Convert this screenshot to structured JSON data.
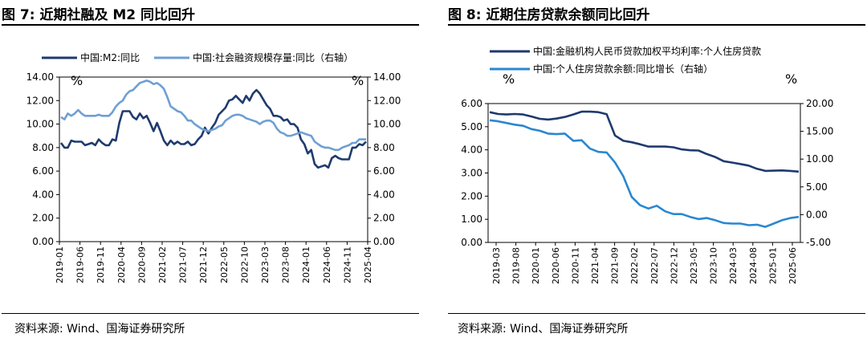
{
  "left": {
    "title": "图 7:  近期社融及 M2 同比回升",
    "source": "资料来源:  Wind、国海证券研究所",
    "chart_data": {
      "type": "line",
      "xlabels": [
        "2019-01",
        "2019-06",
        "2019-11",
        "2020-04",
        "2020-09",
        "2021-02",
        "2021-07",
        "2021-12",
        "2022-05",
        "2022-10",
        "2023-03",
        "2023-08",
        "2024-01",
        "2024-06",
        "2024-11",
        "2025-04"
      ],
      "y_left": {
        "unit": "%",
        "min": 0,
        "max": 14,
        "ticks": [
          "0.00",
          "2.00",
          "4.00",
          "6.00",
          "8.00",
          "10.00",
          "12.00",
          "14.00"
        ]
      },
      "y_right": {
        "unit": "%",
        "min": 0,
        "max": 14,
        "ticks": [
          "0.00",
          "2.00",
          "4.00",
          "6.00",
          "8.00",
          "10.00",
          "12.00",
          "14.00"
        ]
      },
      "series": [
        {
          "name": "中国:M2:同比",
          "color": "#1f3a6e",
          "axis": "left",
          "values": [
            8.4,
            8.0,
            8.0,
            8.6,
            8.5,
            8.5,
            8.5,
            8.2,
            8.3,
            8.4,
            8.2,
            8.7,
            8.4,
            8.2,
            8.2,
            8.7,
            8.6,
            10.1,
            11.1,
            11.1,
            11.1,
            10.6,
            10.4,
            10.9,
            10.5,
            10.7,
            10.1,
            9.4,
            10.1,
            9.4,
            8.6,
            8.2,
            8.6,
            8.3,
            8.5,
            8.3,
            8.3,
            8.5,
            8.2,
            8.3,
            8.7,
            9.0,
            9.7,
            9.2,
            9.7,
            10.1,
            10.8,
            11.1,
            11.4,
            12.0,
            12.1,
            12.4,
            12.1,
            11.8,
            12.4,
            12.0,
            12.6,
            12.9,
            12.6,
            12.1,
            11.6,
            11.3,
            10.7,
            10.7,
            10.6,
            10.3,
            10.4,
            10.0,
            10.0,
            9.7,
            8.7,
            8.3,
            7.5,
            7.8,
            6.6,
            6.3,
            6.4,
            6.5,
            6.3,
            7.1,
            7.3,
            7.1,
            7.0,
            7.0,
            7.0,
            8.0,
            8.0,
            8.3,
            8.2,
            8.5
          ]
        },
        {
          "name": "中国:社会融资规模存量:同比（右轴）",
          "color": "#6e9fd4",
          "axis": "right",
          "values": [
            10.6,
            10.4,
            10.9,
            10.7,
            10.9,
            11.2,
            10.9,
            10.7,
            10.7,
            10.7,
            10.7,
            10.8,
            10.7,
            10.7,
            10.7,
            11.0,
            11.5,
            11.8,
            12.0,
            12.5,
            12.8,
            12.9,
            13.2,
            13.5,
            13.6,
            13.7,
            13.6,
            13.4,
            13.5,
            13.3,
            13.0,
            12.3,
            11.5,
            11.3,
            11.1,
            11.0,
            10.7,
            10.3,
            10.3,
            10.0,
            9.8,
            9.6,
            9.5,
            9.4,
            9.5,
            9.6,
            9.8,
            9.9,
            10.3,
            10.5,
            10.7,
            10.8,
            10.8,
            10.7,
            10.5,
            10.4,
            10.3,
            10.2,
            10.0,
            10.2,
            10.3,
            10.3,
            10.1,
            9.6,
            9.3,
            9.2,
            9.0,
            9.0,
            9.1,
            9.2,
            9.3,
            9.2,
            9.1,
            9.0,
            8.5,
            8.3,
            8.1,
            8.0,
            8.0,
            7.9,
            7.8,
            7.8,
            8.0,
            8.1,
            8.2,
            8.4,
            8.4,
            8.7,
            8.7,
            8.7
          ]
        }
      ]
    }
  },
  "right": {
    "title": "图 8:  近期住房贷款余额同比回升",
    "source": "资料来源:  Wind、国海证券研究所",
    "chart_data": {
      "type": "line",
      "xlabels": [
        "2019-03",
        "2019-08",
        "2020-01",
        "2020-06",
        "2020-11",
        "2021-04",
        "2021-09",
        "2022-02",
        "2022-07",
        "2022-12",
        "2023-05",
        "2023-10",
        "2024-03",
        "2024-08",
        "2025-01",
        "2025-06"
      ],
      "y_left": {
        "unit": "%",
        "min": 0,
        "max": 6,
        "ticks": [
          "0.00",
          "1.00",
          "2.00",
          "3.00",
          "4.00",
          "5.00",
          "6.00"
        ]
      },
      "y_right": {
        "unit": "%",
        "min": -5,
        "max": 20,
        "ticks": [
          "-5.00",
          "0.00",
          "5.00",
          "10.00",
          "15.00",
          "20.00"
        ]
      },
      "series": [
        {
          "name": "中国:金融机构人民币贷款加权平均利率:个人住房贷款",
          "color": "#1f3a6e",
          "axis": "left",
          "values": [
            5.63,
            5.55,
            5.53,
            5.55,
            5.53,
            5.44,
            5.34,
            5.31,
            5.35,
            5.42,
            5.53,
            5.65,
            5.65,
            5.63,
            5.54,
            4.62,
            4.39,
            4.33,
            4.24,
            4.14,
            4.14,
            4.14,
            4.11,
            4.02,
            3.98,
            3.97,
            3.82,
            3.69,
            3.51,
            3.45,
            3.39,
            3.32,
            3.18,
            3.09,
            3.1,
            3.11,
            3.09,
            3.06
          ]
        },
        {
          "name": "中国:个人住房贷款余额:同比增长（右轴）",
          "color": "#2a87d0",
          "axis": "right",
          "values": [
            17.0,
            16.8,
            16.5,
            16.2,
            16.0,
            15.4,
            15.1,
            14.6,
            14.5,
            14.6,
            13.3,
            13.4,
            11.9,
            11.3,
            11.2,
            9.4,
            6.9,
            3.2,
            1.7,
            1.1,
            1.6,
            0.6,
            0.1,
            0.1,
            -0.4,
            -0.8,
            -0.6,
            -1.0,
            -1.5,
            -1.6,
            -1.6,
            -1.9,
            -1.8,
            -2.2,
            -1.6,
            -1.0,
            -0.6,
            -0.4
          ]
        }
      ]
    }
  }
}
